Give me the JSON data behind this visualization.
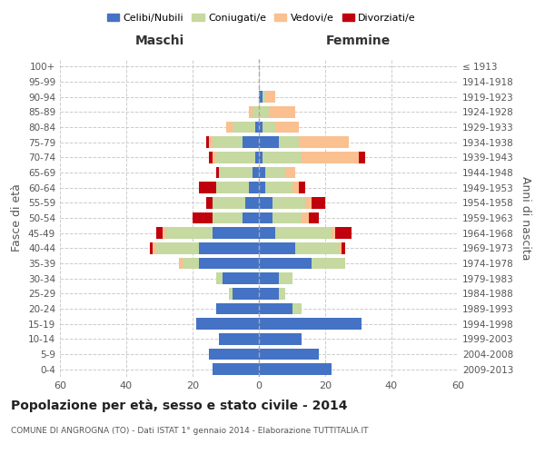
{
  "age_groups": [
    "0-4",
    "5-9",
    "10-14",
    "15-19",
    "20-24",
    "25-29",
    "30-34",
    "35-39",
    "40-44",
    "45-49",
    "50-54",
    "55-59",
    "60-64",
    "65-69",
    "70-74",
    "75-79",
    "80-84",
    "85-89",
    "90-94",
    "95-99",
    "100+"
  ],
  "birth_years": [
    "2009-2013",
    "2004-2008",
    "1999-2003",
    "1994-1998",
    "1989-1993",
    "1984-1988",
    "1979-1983",
    "1974-1978",
    "1969-1973",
    "1964-1968",
    "1959-1963",
    "1954-1958",
    "1949-1953",
    "1944-1948",
    "1939-1943",
    "1934-1938",
    "1929-1933",
    "1924-1928",
    "1919-1923",
    "1914-1918",
    "≤ 1913"
  ],
  "male": {
    "celibi": [
      14,
      15,
      12,
      19,
      13,
      8,
      11,
      18,
      18,
      14,
      5,
      4,
      3,
      2,
      1,
      5,
      1,
      0,
      0,
      0,
      0
    ],
    "coniugati": [
      0,
      0,
      0,
      0,
      0,
      1,
      2,
      5,
      13,
      14,
      9,
      10,
      10,
      10,
      12,
      9,
      7,
      2,
      0,
      0,
      0
    ],
    "vedovi": [
      0,
      0,
      0,
      0,
      0,
      0,
      0,
      1,
      1,
      1,
      0,
      0,
      0,
      0,
      1,
      1,
      2,
      1,
      0,
      0,
      0
    ],
    "divorziati": [
      0,
      0,
      0,
      0,
      0,
      0,
      0,
      0,
      1,
      2,
      6,
      2,
      5,
      1,
      1,
      1,
      0,
      0,
      0,
      0,
      0
    ]
  },
  "female": {
    "nubili": [
      22,
      18,
      13,
      31,
      10,
      6,
      6,
      16,
      11,
      5,
      4,
      4,
      2,
      2,
      1,
      6,
      1,
      0,
      1,
      0,
      0
    ],
    "coniugate": [
      0,
      0,
      0,
      0,
      3,
      2,
      4,
      10,
      13,
      17,
      9,
      10,
      8,
      6,
      12,
      6,
      4,
      3,
      1,
      0,
      0
    ],
    "vedove": [
      0,
      0,
      0,
      0,
      0,
      0,
      0,
      0,
      1,
      1,
      2,
      2,
      2,
      3,
      17,
      15,
      7,
      8,
      3,
      0,
      0
    ],
    "divorziate": [
      0,
      0,
      0,
      0,
      0,
      0,
      0,
      0,
      1,
      5,
      3,
      4,
      2,
      0,
      2,
      0,
      0,
      0,
      0,
      0,
      0
    ]
  },
  "colors": {
    "celibi": "#4472C4",
    "coniugati": "#C5D9A0",
    "vedovi": "#FAC090",
    "divorziati": "#C0000C"
  },
  "xlim": 60,
  "title": "Popolazione per età, sesso e stato civile - 2014",
  "subtitle": "COMUNE DI ANGROGNA (TO) - Dati ISTAT 1° gennaio 2014 - Elaborazione TUTTITALIA.IT",
  "ylabel_left": "Fasce di età",
  "ylabel_right": "Anni di nascita",
  "xlabel_left": "Maschi",
  "xlabel_right": "Femmine",
  "legend_labels": [
    "Celibi/Nubili",
    "Coniugati/e",
    "Vedovi/e",
    "Divorziati/e"
  ],
  "background_color": "#ffffff",
  "grid_color": "#cccccc"
}
